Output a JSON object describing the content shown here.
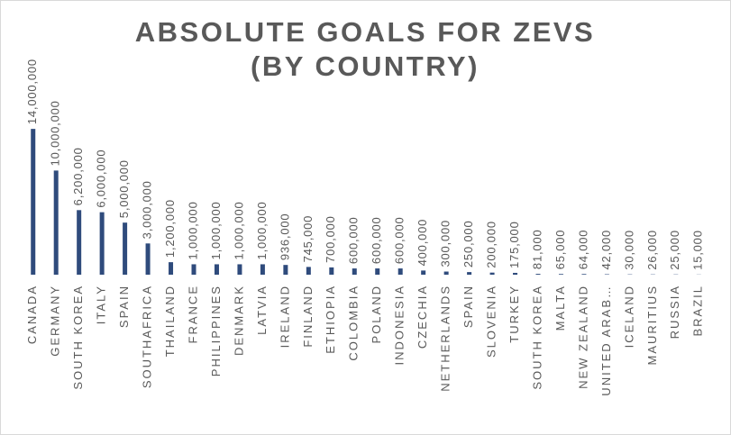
{
  "chart_data": {
    "type": "bar",
    "title": [
      "ABSOLUTE GOALS FOR ZEVS",
      "(BY COUNTRY)"
    ],
    "categories": [
      "CANADA",
      "GERMANY",
      "SOUTH KOREA",
      "ITALY",
      "SPAIN",
      "SOUTHAFRICA",
      "THAILAND",
      "FRANCE",
      "PHILIPPINES",
      "DENMARK",
      "LATVIA",
      "IRELAND",
      "FINLAND",
      "ETHIOPIA",
      "COLOMBIA",
      "POLAND",
      "INDONESIA",
      "CZECHIA",
      "NETHERLANDS",
      "SPAIN",
      "SLOVENIA",
      "TURKEY",
      "SOUTH KOREA",
      "MALTA",
      "NEW ZEALAND",
      "UNITED ARAB…",
      "ICELAND",
      "MAURITIUS",
      "RUSSIA",
      "BRAZIL"
    ],
    "values": [
      14000000,
      10000000,
      6200000,
      6000000,
      5000000,
      3000000,
      1200000,
      1000000,
      1000000,
      1000000,
      1000000,
      936000,
      745000,
      700000,
      600000,
      600000,
      600000,
      400000,
      300000,
      250000,
      200000,
      175000,
      81000,
      65000,
      64000,
      42000,
      30000,
      26000,
      25000,
      15000
    ],
    "value_labels": [
      "14,000,000",
      "10,000,000",
      "6,200,000",
      "6,000,000",
      "5,000,000",
      "3,000,000",
      "1,200,000",
      "1,000,000",
      "1,000,000",
      "1,000,000",
      "1,000,000",
      "936,000",
      "745,000",
      "700,000",
      "600,000",
      "600,000",
      "600,000",
      "400,000",
      "300,000",
      "250,000",
      "200,000",
      "175,000",
      "81,000",
      "65,000",
      "64,000",
      "42,000",
      "30,000",
      "26,000",
      "25,000",
      "15,000"
    ],
    "color": "#2f4b7c",
    "ylim": [
      0,
      16000000
    ]
  }
}
